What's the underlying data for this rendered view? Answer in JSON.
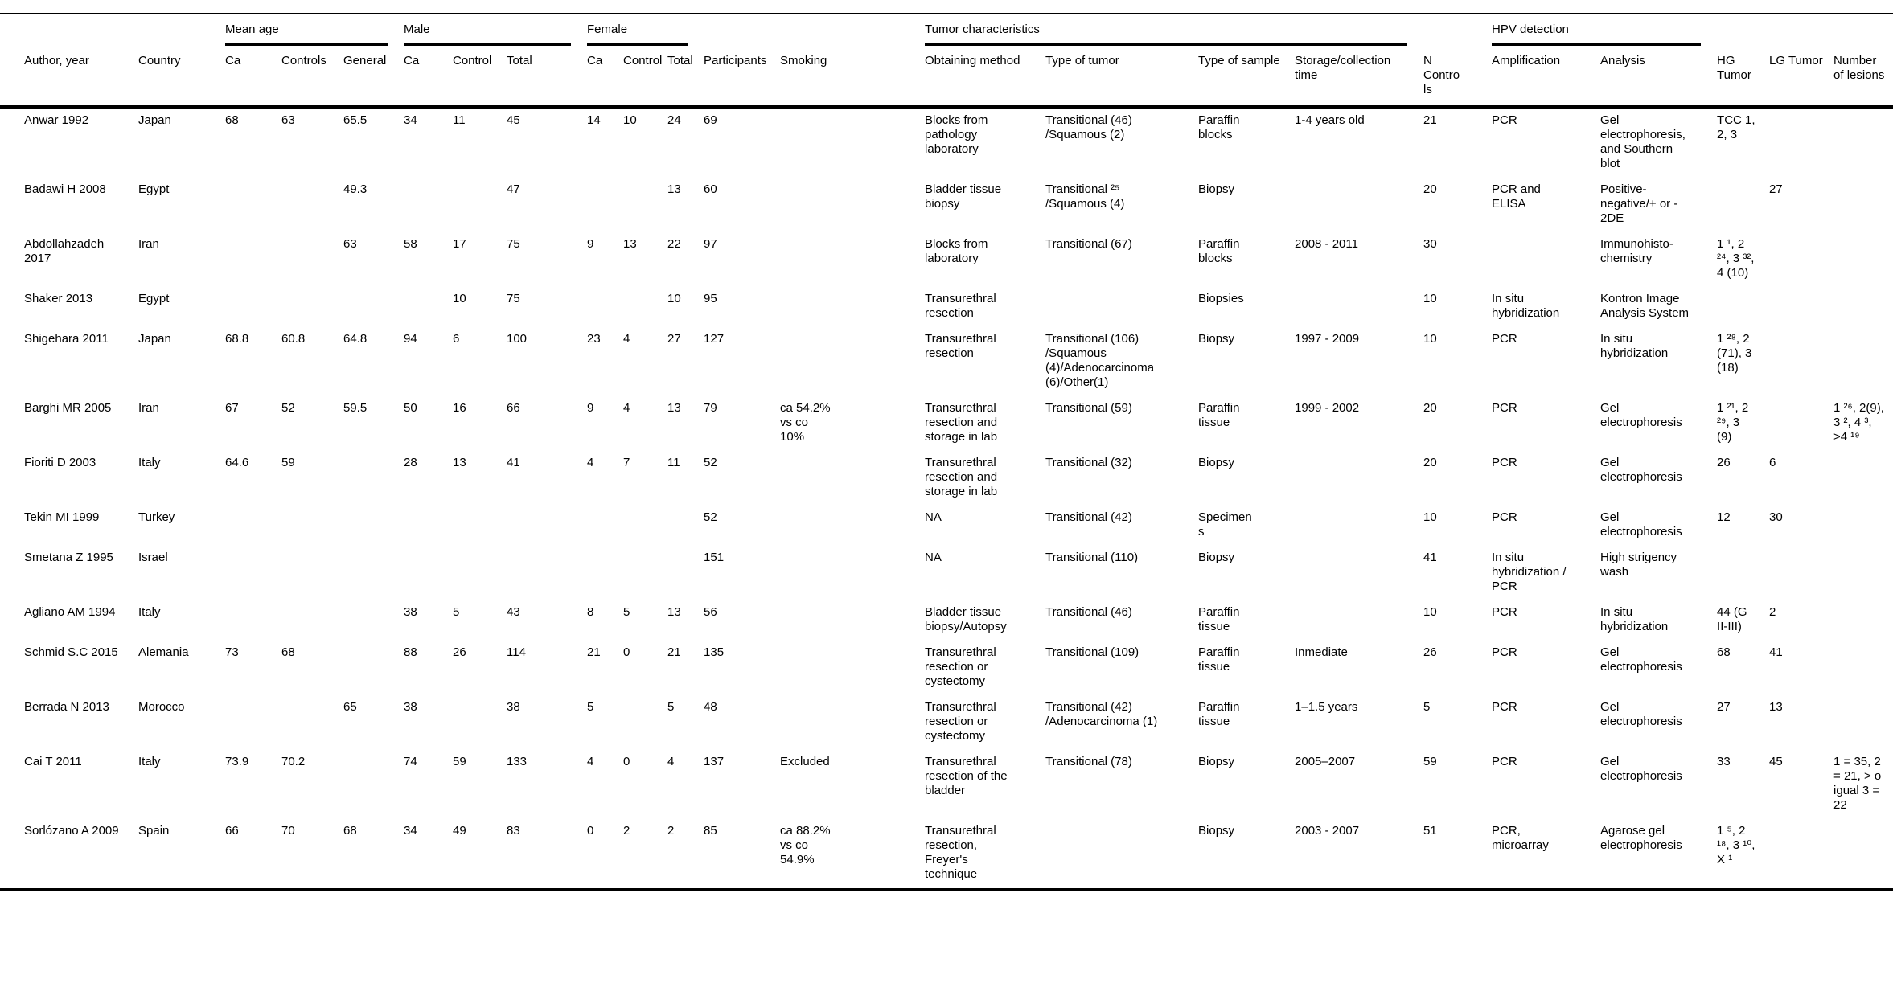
{
  "theme": {
    "background": "#ffffff",
    "text": "#000000",
    "rule_color": "#000000"
  },
  "table": {
    "column_groups": [
      {
        "label": "",
        "span": 2,
        "underline": false
      },
      {
        "label": "Mean age",
        "span": 3,
        "underline": true
      },
      {
        "label": "Male",
        "span": 3,
        "underline": true
      },
      {
        "label": "Female",
        "span": 3,
        "underline": true
      },
      {
        "label": "",
        "span": 2,
        "underline": false
      },
      {
        "label": "Tumor characteristics",
        "span": 4,
        "underline": true
      },
      {
        "label": "",
        "span": 1,
        "underline": false
      },
      {
        "label": "HPV detection",
        "span": 2,
        "underline": true
      },
      {
        "label": "",
        "span": 3,
        "underline": false
      }
    ],
    "columns": [
      "Author, year",
      "Country",
      "Ca",
      "Controls",
      "General",
      "Ca",
      "Control",
      "Total",
      "Ca",
      "Control",
      "Total",
      "Participants",
      "Smoking",
      "Obtaining method",
      "Type of tumor",
      "Type of sample",
      "Storage/collection time",
      "N Controls",
      "Amplification",
      "Analysis",
      "HG Tumor",
      "LG Tumor",
      "Number of lesions"
    ],
    "rows": [
      [
        "Anwar 1992",
        "Japan",
        "68",
        "63",
        "65.5",
        "34",
        "11",
        "45",
        "14",
        "10",
        "24",
        "69",
        "",
        "Blocks from pathology laboratory",
        "Transitional (46) /Squamous (2)",
        "Paraffin blocks",
        "1-4 years old",
        "21",
        "PCR",
        "Gel electrophoresis, and Southern blot",
        "TCC 1, 2, 3",
        "",
        ""
      ],
      [
        "Badawi H 2008",
        "Egypt",
        "",
        "",
        "49.3",
        "",
        "",
        "47",
        "",
        "",
        "13",
        "60",
        "",
        "Bladder tissue biopsy",
        "Transitional ²⁵ /Squamous (4)",
        "Biopsy",
        "",
        "20",
        "PCR and ELISA",
        "Positive-negative/+ or - 2DE",
        "",
        "27",
        ""
      ],
      [
        "Abdollahzadeh 2017",
        "Iran",
        "",
        "",
        "63",
        "58",
        "17",
        "75",
        "9",
        "13",
        "22",
        "97",
        "",
        "Blocks from laboratory",
        "Transitional (67)",
        "Paraffin blocks",
        "2008 - 2011",
        "30",
        "",
        "Immunohisto-chemistry",
        "1 ¹, 2 ²⁴, 3 ³², 4 (10)",
        "",
        ""
      ],
      [
        "Shaker 2013",
        "Egypt",
        "",
        "",
        "",
        "",
        "10",
        "75",
        "",
        "",
        "10",
        "95",
        "",
        "Transurethral resection",
        "",
        "Biopsies",
        "",
        "10",
        "In situ hybridization",
        "Kontron Image Analysis System",
        "",
        "",
        ""
      ],
      [
        "Shigehara 2011",
        "Japan",
        "68.8",
        "60.8",
        "64.8",
        "94",
        "6",
        "100",
        "23",
        "4",
        "27",
        "127",
        "",
        "Transurethral resection",
        "Transitional (106) /Squamous (4)/Adenocarcinoma (6)/Other(1)",
        "Biopsy",
        "1997 - 2009",
        "10",
        "PCR",
        "In situ hybridization",
        "1 ²⁸, 2 (71), 3 (18)",
        "",
        ""
      ],
      [
        "Barghi MR 2005",
        "Iran",
        "67",
        "52",
        "59.5",
        "50",
        "16",
        "66",
        "9",
        "4",
        "13",
        "79",
        "ca 54.2% vs co 10%",
        "Transurethral resection and storage in lab",
        "Transitional (59)",
        "Paraffin tissue",
        "1999 - 2002",
        "20",
        "PCR",
        "Gel electrophoresis",
        "1 ²¹, 2 ²⁹, 3 (9)",
        "",
        "1 ²⁶, 2(9), 3 ², 4 ³, >4 ¹⁹"
      ],
      [
        "Fioriti D 2003",
        "Italy",
        "64.6",
        "59",
        "",
        "28",
        "13",
        "41",
        "4",
        "7",
        "11",
        "52",
        "",
        "Transurethral resection and storage in lab",
        "Transitional (32)",
        "Biopsy",
        "",
        "20",
        "PCR",
        "Gel electrophoresis",
        "26",
        "6",
        ""
      ],
      [
        "Tekin MI 1999",
        "Turkey",
        "",
        "",
        "",
        "",
        "",
        "",
        "",
        "",
        "",
        "52",
        "",
        "NA",
        "Transitional (42)",
        "Specimens",
        "",
        "10",
        "PCR",
        "Gel electrophoresis",
        "12",
        "30",
        ""
      ],
      [
        "Smetana Z 1995",
        "Israel",
        "",
        "",
        "",
        "",
        "",
        "",
        "",
        "",
        "",
        "151",
        "",
        "NA",
        "Transitional (110)",
        "Biopsy",
        "",
        "41",
        "In situ hybridization / PCR",
        "High strigency wash",
        "",
        "",
        ""
      ],
      [
        "Agliano AM 1994",
        "Italy",
        "",
        "",
        "",
        "38",
        "5",
        "43",
        "8",
        "5",
        "13",
        "56",
        "",
        "Bladder tissue biopsy/Autopsy",
        "Transitional (46)",
        "Paraffin tissue",
        "",
        "10",
        "PCR",
        "In situ hybridization",
        "44 (G II-III)",
        "2",
        ""
      ],
      [
        "Schmid S.C 2015",
        "Alemania",
        "73",
        "68",
        "",
        "88",
        "26",
        "114",
        "21",
        "0",
        "21",
        "135",
        "",
        "Transurethral resection or cystectomy",
        "Transitional (109)",
        "Paraffin tissue",
        "Inmediate",
        "26",
        "PCR",
        "Gel electrophoresis",
        "68",
        "41",
        ""
      ],
      [
        "Berrada N 2013",
        "Morocco",
        "",
        "",
        "65",
        "38",
        "",
        "38",
        "5",
        "",
        "5",
        "48",
        "",
        "Transurethral resection or cystectomy",
        "Transitional (42) /Adenocarcinoma (1)",
        "Paraffin tissue",
        "1–1.5 years",
        "5",
        "PCR",
        "Gel electrophoresis",
        "27",
        "13",
        ""
      ],
      [
        "Cai T 2011",
        "Italy",
        "73.9",
        "70.2",
        "",
        "74",
        "59",
        "133",
        "4",
        "0",
        "4",
        "137",
        "Excluded",
        "Transurethral resection of the bladder",
        "Transitional (78)",
        "Biopsy",
        "2005–2007",
        "59",
        "PCR",
        "Gel electrophoresis",
        "33",
        "45",
        "1 = 35, 2 = 21, > o igual 3 = 22"
      ],
      [
        "Sorlózano A 2009",
        "Spain",
        "66",
        "70",
        "68",
        "34",
        "49",
        "83",
        "0",
        "2",
        "2",
        "85",
        "ca 88.2% vs co 54.9%",
        "Transurethral resection, Freyer's technique",
        "",
        "Biopsy",
        "2003 - 2007",
        "51",
        "PCR, microarray",
        "Agarose gel electrophoresis",
        "1 ⁵, 2 ¹⁸, 3 ¹⁰, X ¹",
        "",
        ""
      ]
    ]
  }
}
